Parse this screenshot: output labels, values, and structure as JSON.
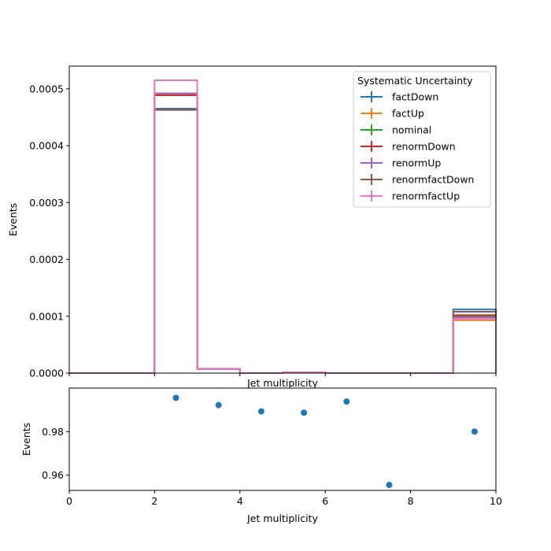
{
  "chart_data": [
    {
      "type": "line",
      "drawstyle": "steps",
      "xlabel": "Jet multiplicity",
      "ylabel": "Events",
      "xlim": [
        0,
        10
      ],
      "ylim": [
        0,
        0.00054
      ],
      "yticks": [
        0.0,
        0.0001,
        0.0002,
        0.0003,
        0.0004,
        0.0005
      ],
      "yticklabels": [
        "0.0000",
        "0.0001",
        "0.0002",
        "0.0003",
        "0.0004",
        "0.0005"
      ],
      "bin_edges": [
        0,
        1,
        2,
        3,
        4,
        5,
        6,
        7,
        8,
        9,
        10
      ],
      "legend": {
        "title": "Systematic Uncertainty",
        "placement": "top-right"
      },
      "series": [
        {
          "name": "factDown",
          "color": "#1f77b4",
          "values": [
            0,
            0,
            0.000465,
            7.5e-06,
            0,
            1e-06,
            0,
            0,
            0,
            0.000112
          ]
        },
        {
          "name": "factUp",
          "color": "#ff7f0e",
          "values": [
            0,
            0,
            0.000492,
            7.2e-06,
            0,
            1e-06,
            0,
            0,
            0,
            9.3e-05
          ]
        },
        {
          "name": "nominal",
          "color": "#2ca02c",
          "values": [
            0,
            0,
            0.000489,
            7.3e-06,
            0,
            1e-06,
            0,
            0,
            0,
            0.0001
          ]
        },
        {
          "name": "renormDown",
          "color": "#d62728",
          "values": [
            0,
            0,
            0.000489,
            7.3e-06,
            0,
            1e-06,
            0,
            0,
            0,
            0.000102
          ]
        },
        {
          "name": "renormUp",
          "color": "#9467bd",
          "values": [
            0,
            0,
            0.000492,
            7.2e-06,
            0,
            1e-06,
            0,
            0,
            0,
            9.8e-05
          ]
        },
        {
          "name": "renormfactDown",
          "color": "#8c564b",
          "values": [
            0,
            0,
            0.000463,
            7.4e-06,
            0,
            1e-06,
            0,
            0,
            0,
            0.000108
          ]
        },
        {
          "name": "renormfactUp",
          "color": "#e377c2",
          "values": [
            0,
            0,
            0.000515,
            7.1e-06,
            0,
            1e-06,
            0,
            0,
            0,
            9.5e-05
          ]
        }
      ],
      "xticks_visible_labels": false,
      "top_xlabel": "Jet multiplicity"
    },
    {
      "type": "scatter",
      "xlabel": "Jet multiplicity",
      "ylabel": "Events",
      "xlim": [
        0,
        10
      ],
      "ylim": [
        0.953,
        1.0
      ],
      "xticks": [
        0,
        2,
        4,
        6,
        8,
        10
      ],
      "yticks": [
        0.96,
        0.98
      ],
      "yticklabels": [
        "0.96",
        "0.98"
      ],
      "points": {
        "color": "#1f77b4",
        "x": [
          2.5,
          3.5,
          4.5,
          5.5,
          6.5,
          7.5,
          9.5
        ],
        "y": [
          0.9955,
          0.9922,
          0.9893,
          0.9887,
          0.9938,
          0.9555,
          0.98
        ]
      }
    }
  ]
}
